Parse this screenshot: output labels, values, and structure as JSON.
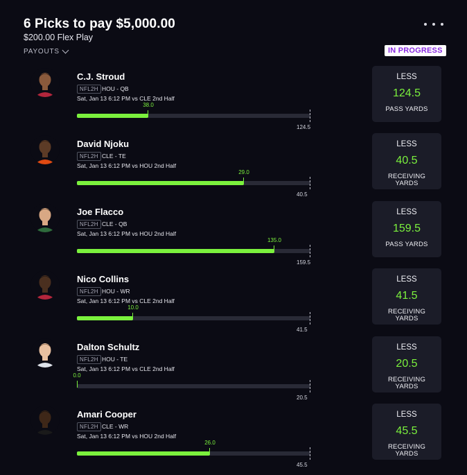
{
  "header": {
    "title": "6 Picks to pay $5,000.00",
    "subtitle": "$200.00 Flex Play",
    "payouts_label": "PAYOUTS",
    "status": "IN PROGRESS"
  },
  "colors": {
    "accent": "#7bf13d",
    "status": "#8a2be2",
    "card": "#1b1c28",
    "background": "#0b0b14"
  },
  "picks": [
    {
      "name": "C.J. Stroud",
      "league": "NFL2H",
      "team_pos": "HOU - QB",
      "game": "Sat, Jan 13 6:12 PM  vs CLE 2nd Half",
      "current": "38.0",
      "line": "124.5",
      "direction": "LESS",
      "stat": "PASS YARDS",
      "progress": 0.305
    },
    {
      "name": "David Njoku",
      "league": "NFL2H",
      "team_pos": "CLE - TE",
      "game": "Sat, Jan 13 6:12 PM  vs HOU 2nd Half",
      "current": "29.0",
      "line": "40.5",
      "direction": "LESS",
      "stat": "RECEIVING YARDS",
      "progress": 0.716
    },
    {
      "name": "Joe Flacco",
      "league": "NFL2H",
      "team_pos": "CLE - QB",
      "game": "Sat, Jan 13 6:12 PM  vs HOU 2nd Half",
      "current": "135.0",
      "line": "159.5",
      "direction": "LESS",
      "stat": "PASS YARDS",
      "progress": 0.846
    },
    {
      "name": "Nico Collins",
      "league": "NFL2H",
      "team_pos": "HOU - WR",
      "game": "Sat, Jan 13 6:12 PM  vs CLE 2nd Half",
      "current": "10.0",
      "line": "41.5",
      "direction": "LESS",
      "stat": "RECEIVING YARDS",
      "progress": 0.241
    },
    {
      "name": "Dalton Schultz",
      "league": "NFL2H",
      "team_pos": "HOU - TE",
      "game": "Sat, Jan 13 6:12 PM  vs CLE 2nd Half",
      "current": "0.0",
      "line": "20.5",
      "direction": "LESS",
      "stat": "RECEIVING YARDS",
      "progress": 0.0
    },
    {
      "name": "Amari Cooper",
      "league": "NFL2H",
      "team_pos": "CLE - WR",
      "game": "Sat, Jan 13 6:12 PM  vs HOU 2nd Half",
      "current": "26.0",
      "line": "45.5",
      "direction": "LESS",
      "stat": "RECEIVING YARDS",
      "progress": 0.571
    }
  ]
}
